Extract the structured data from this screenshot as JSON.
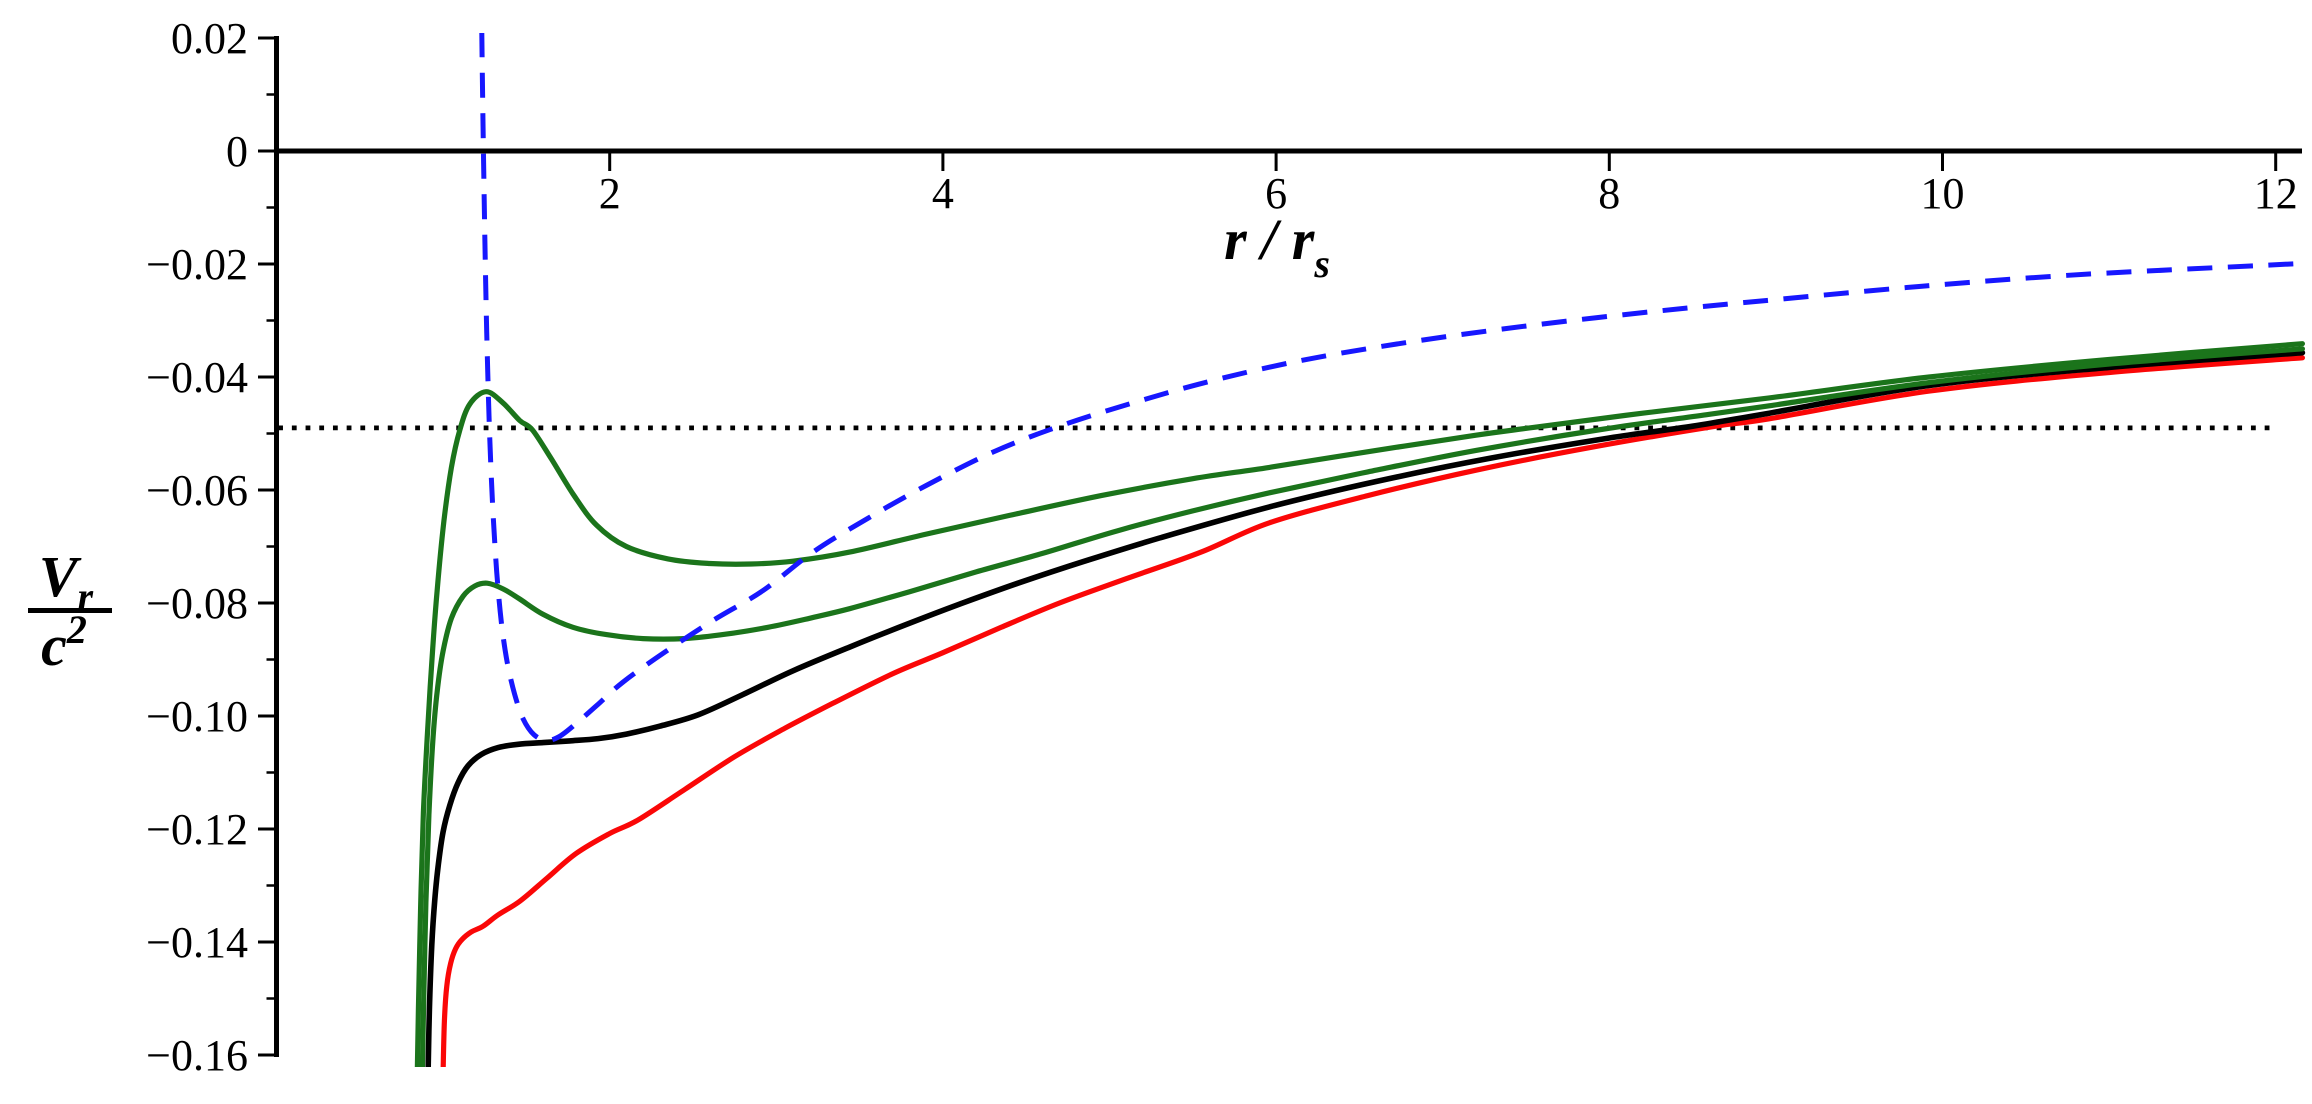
{
  "figure": {
    "description": "Effective radial potential curves plotted against radius",
    "background_color": "#ffffff",
    "axis_color": "#000000"
  },
  "chart_data": {
    "type": "line",
    "title": "",
    "xlabel": "r / r_s",
    "xlabel_parts": {
      "base": "r / r",
      "sub": "s"
    },
    "ylabel": "V_r / c^2",
    "ylabel_parts": {
      "num_base": "V",
      "num_sub": "r",
      "den_base": "c",
      "den_sup": "2"
    },
    "xlim": [
      0,
      12.16
    ],
    "ylim": [
      -0.162,
      0.021
    ],
    "grid": false,
    "legend": "none",
    "x_ticks": [
      {
        "value": 2,
        "label": "2"
      },
      {
        "value": 4,
        "label": "4"
      },
      {
        "value": 6,
        "label": "6"
      },
      {
        "value": 8,
        "label": "8"
      },
      {
        "value": 10,
        "label": "10"
      },
      {
        "value": 12,
        "label": "12"
      }
    ],
    "y_ticks": [
      {
        "value": 0.02,
        "label": "0.02"
      },
      {
        "value": 0.0,
        "label": "0"
      },
      {
        "value": -0.02,
        "label": "−0.02"
      },
      {
        "value": -0.04,
        "label": "−0.04"
      },
      {
        "value": -0.06,
        "label": "−0.06"
      },
      {
        "value": -0.08,
        "label": "−0.08"
      },
      {
        "value": -0.1,
        "label": "−0.10"
      },
      {
        "value": -0.12,
        "label": "−0.12"
      },
      {
        "value": -0.14,
        "label": "−0.14"
      },
      {
        "value": -0.16,
        "label": "−0.16"
      }
    ],
    "y_minor_ticks": [
      0.01,
      -0.01,
      -0.03,
      -0.05,
      -0.07,
      -0.09,
      -0.11,
      -0.13,
      -0.15
    ],
    "reference_lines": [
      {
        "name": "horizontal-dotted-energy-line",
        "axis": "y",
        "value": -0.049,
        "color": "#000000",
        "style": "dotted",
        "width": 4.8,
        "dash": [
          4.8,
          8.9
        ],
        "x_start": 0.01,
        "x_end": 11.98
      }
    ],
    "series": [
      {
        "name": "red-solid-curve",
        "color": "#fa0707",
        "style": "solid",
        "width": 5.2,
        "points": [
          [
            1.0,
            -0.163
          ],
          [
            1.008,
            -0.154
          ],
          [
            1.022,
            -0.1478
          ],
          [
            1.045,
            -0.1438
          ],
          [
            1.075,
            -0.1412
          ],
          [
            1.115,
            -0.1395
          ],
          [
            1.17,
            -0.1382
          ],
          [
            1.24,
            -0.1372
          ],
          [
            1.33,
            -0.1352
          ],
          [
            1.46,
            -0.1328
          ],
          [
            1.62,
            -0.1288
          ],
          [
            1.8,
            -0.1243
          ],
          [
            2.0,
            -0.1208
          ],
          [
            2.17,
            -0.1184
          ],
          [
            2.45,
            -0.113
          ],
          [
            2.75,
            -0.1072
          ],
          [
            3.05,
            -0.1022
          ],
          [
            3.35,
            -0.0976
          ],
          [
            3.7,
            -0.0925
          ],
          [
            4.0,
            -0.0888
          ],
          [
            4.35,
            -0.0843
          ],
          [
            4.7,
            -0.08
          ],
          [
            5.1,
            -0.0757
          ],
          [
            5.55,
            -0.071
          ],
          [
            5.96,
            -0.0658
          ],
          [
            6.55,
            -0.061
          ],
          [
            7.2,
            -0.0565
          ],
          [
            7.9,
            -0.0524
          ],
          [
            8.62,
            -0.0488
          ],
          [
            8.96,
            -0.0474
          ],
          [
            9.92,
            -0.0425
          ],
          [
            11.0,
            -0.0392
          ],
          [
            12.16,
            -0.0366
          ]
        ]
      },
      {
        "name": "black-solid-curve",
        "color": "#000000",
        "style": "solid",
        "width": 5.6,
        "points": [
          [
            0.91,
            -0.163
          ],
          [
            0.918,
            -0.152
          ],
          [
            0.932,
            -0.1405
          ],
          [
            0.95,
            -0.1325
          ],
          [
            0.972,
            -0.1262
          ],
          [
            1.0,
            -0.1205
          ],
          [
            1.04,
            -0.1158
          ],
          [
            1.09,
            -0.1118
          ],
          [
            1.15,
            -0.1088
          ],
          [
            1.23,
            -0.1068
          ],
          [
            1.33,
            -0.1056
          ],
          [
            1.45,
            -0.105
          ],
          [
            1.6,
            -0.1047
          ],
          [
            1.76,
            -0.1044
          ],
          [
            1.93,
            -0.104
          ],
          [
            2.1,
            -0.1032
          ],
          [
            2.3,
            -0.1018
          ],
          [
            2.53,
            -0.0998
          ],
          [
            2.8,
            -0.0962
          ],
          [
            3.1,
            -0.092
          ],
          [
            3.44,
            -0.0878
          ],
          [
            3.78,
            -0.0838
          ],
          [
            4.1,
            -0.0802
          ],
          [
            4.45,
            -0.0765
          ],
          [
            4.85,
            -0.0726
          ],
          [
            5.3,
            -0.0685
          ],
          [
            5.96,
            -0.063
          ],
          [
            6.6,
            -0.0585
          ],
          [
            7.3,
            -0.0543
          ],
          [
            8.0,
            -0.0508
          ],
          [
            8.5,
            -0.0487
          ],
          [
            8.96,
            -0.0464
          ],
          [
            9.92,
            -0.0415
          ],
          [
            11.0,
            -0.0383
          ],
          [
            12.16,
            -0.0357
          ]
        ]
      },
      {
        "name": "green-solid-lower-curve",
        "color": "#1b741b",
        "style": "solid",
        "width": 5.2,
        "points": [
          [
            0.875,
            -0.163
          ],
          [
            0.883,
            -0.151
          ],
          [
            0.897,
            -0.133
          ],
          [
            0.915,
            -0.1175
          ],
          [
            0.938,
            -0.1045
          ],
          [
            0.965,
            -0.0955
          ],
          [
            1.0,
            -0.0885
          ],
          [
            1.05,
            -0.0827
          ],
          [
            1.12,
            -0.0788
          ],
          [
            1.19,
            -0.077
          ],
          [
            1.264,
            -0.0765
          ],
          [
            1.36,
            -0.0775
          ],
          [
            1.46,
            -0.0793
          ],
          [
            1.6,
            -0.082
          ],
          [
            1.78,
            -0.0843
          ],
          [
            1.98,
            -0.0856
          ],
          [
            2.2,
            -0.0863
          ],
          [
            2.45,
            -0.0863
          ],
          [
            2.7,
            -0.0855
          ],
          [
            2.95,
            -0.0843
          ],
          [
            3.2,
            -0.0827
          ],
          [
            3.44,
            -0.081
          ],
          [
            3.8,
            -0.078
          ],
          [
            4.2,
            -0.0745
          ],
          [
            4.6,
            -0.0712
          ],
          [
            5.05,
            -0.0672
          ],
          [
            5.5,
            -0.0637
          ],
          [
            5.96,
            -0.0605
          ],
          [
            6.55,
            -0.0568
          ],
          [
            7.2,
            -0.053
          ],
          [
            7.97,
            -0.0492
          ],
          [
            8.6,
            -0.0466
          ],
          [
            8.96,
            -0.0451
          ],
          [
            9.92,
            -0.041
          ],
          [
            11.0,
            -0.0377
          ],
          [
            12.16,
            -0.035
          ]
        ]
      },
      {
        "name": "green-solid-upper-curve",
        "color": "#1b741b",
        "style": "solid",
        "width": 5.2,
        "points": [
          [
            0.845,
            -0.163
          ],
          [
            0.852,
            -0.152
          ],
          [
            0.865,
            -0.134
          ],
          [
            0.882,
            -0.117
          ],
          [
            0.905,
            -0.1035
          ],
          [
            0.932,
            -0.0905
          ],
          [
            0.965,
            -0.0775
          ],
          [
            1.005,
            -0.0655
          ],
          [
            1.05,
            -0.056
          ],
          [
            1.1,
            -0.0494
          ],
          [
            1.16,
            -0.0448
          ],
          [
            1.258,
            -0.0426
          ],
          [
            1.36,
            -0.0446
          ],
          [
            1.46,
            -0.0477
          ],
          [
            1.537,
            -0.0494
          ],
          [
            1.65,
            -0.0545
          ],
          [
            1.78,
            -0.0607
          ],
          [
            1.92,
            -0.0662
          ],
          [
            2.1,
            -0.07
          ],
          [
            2.35,
            -0.0722
          ],
          [
            2.6,
            -0.073
          ],
          [
            2.85,
            -0.0731
          ],
          [
            3.1,
            -0.0726
          ],
          [
            3.44,
            -0.071
          ],
          [
            3.9,
            -0.0678
          ],
          [
            4.4,
            -0.0645
          ],
          [
            4.95,
            -0.061
          ],
          [
            5.5,
            -0.058
          ],
          [
            5.96,
            -0.056
          ],
          [
            6.6,
            -0.053
          ],
          [
            7.2,
            -0.0503
          ],
          [
            7.55,
            -0.0489
          ],
          [
            8.2,
            -0.0464
          ],
          [
            8.96,
            -0.0437
          ],
          [
            9.92,
            -0.04
          ],
          [
            11.0,
            -0.0369
          ],
          [
            12.16,
            -0.0341
          ]
        ]
      },
      {
        "name": "blue-dashed-curve",
        "color": "#1717ff",
        "style": "dashed",
        "width": 5.0,
        "dash": [
          25,
          15.5
        ],
        "points": [
          [
            1.232,
            0.021
          ],
          [
            1.237,
            0.01
          ],
          [
            1.243,
            -0.002
          ],
          [
            1.251,
            -0.016
          ],
          [
            1.262,
            -0.032
          ],
          [
            1.278,
            -0.049
          ],
          [
            1.298,
            -0.063
          ],
          [
            1.322,
            -0.0745
          ],
          [
            1.35,
            -0.0835
          ],
          [
            1.385,
            -0.0905
          ],
          [
            1.43,
            -0.0962
          ],
          [
            1.48,
            -0.1005
          ],
          [
            1.545,
            -0.1033
          ],
          [
            1.62,
            -0.1043
          ],
          [
            1.7,
            -0.1036
          ],
          [
            1.8,
            -0.1013
          ],
          [
            1.92,
            -0.0982
          ],
          [
            2.08,
            -0.094
          ],
          [
            2.33,
            -0.0887
          ],
          [
            2.62,
            -0.0831
          ],
          [
            2.92,
            -0.0778
          ],
          [
            3.22,
            -0.071
          ],
          [
            3.55,
            -0.065
          ],
          [
            3.9,
            -0.0592
          ],
          [
            4.3,
            -0.0533
          ],
          [
            4.7,
            -0.0487
          ],
          [
            5.15,
            -0.0445
          ],
          [
            5.65,
            -0.0404
          ],
          [
            6.2,
            -0.0368
          ],
          [
            6.85,
            -0.0336
          ],
          [
            7.55,
            -0.0308
          ],
          [
            8.3,
            -0.0283
          ],
          [
            9.0,
            -0.0263
          ],
          [
            9.85,
            -0.024
          ],
          [
            10.7,
            -0.0221
          ],
          [
            11.4,
            -0.021
          ],
          [
            12.16,
            -0.0199
          ]
        ]
      }
    ]
  }
}
